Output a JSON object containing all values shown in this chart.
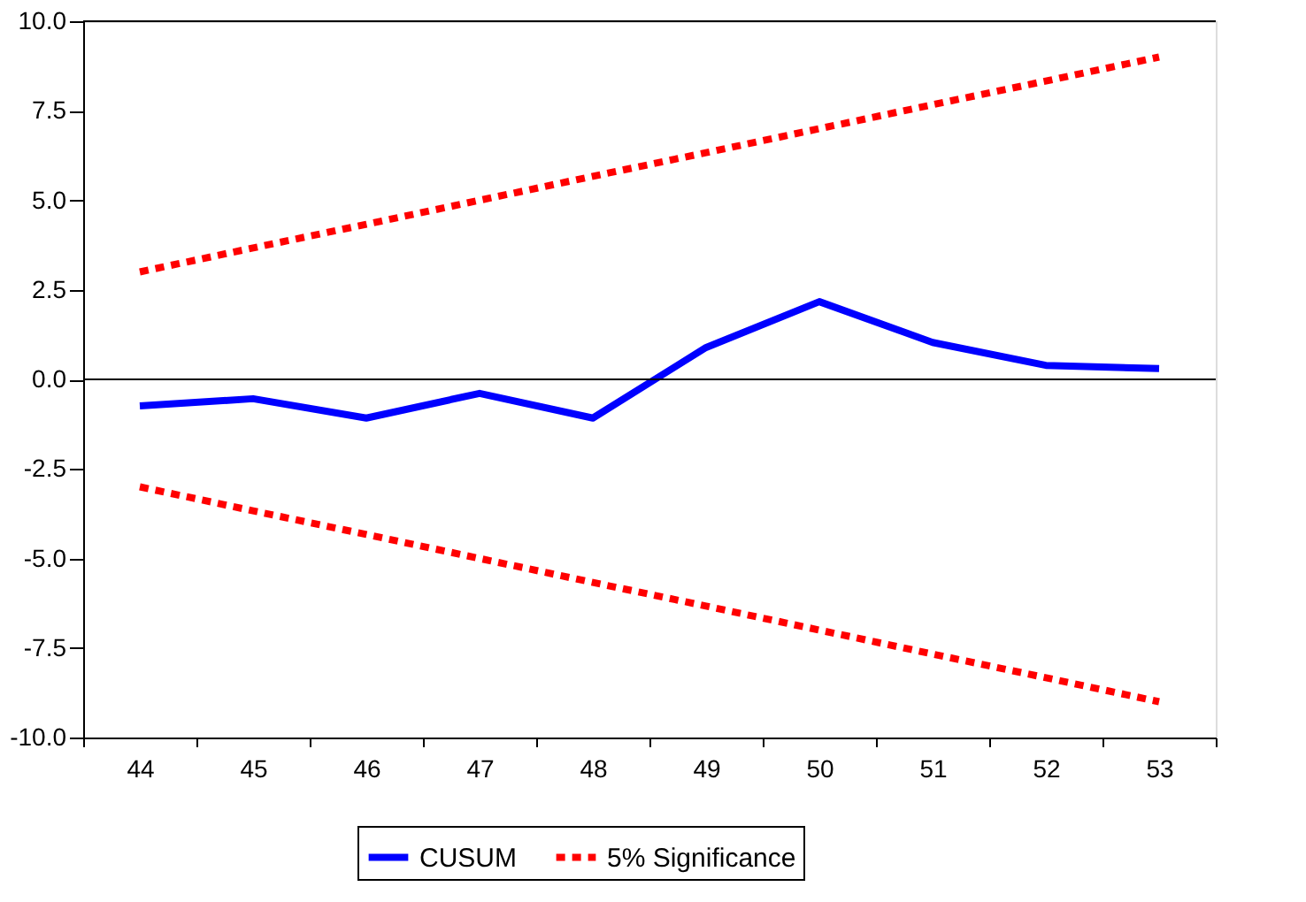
{
  "chart_data": {
    "type": "line",
    "categories": [
      "44",
      "45",
      "46",
      "47",
      "48",
      "49",
      "50",
      "51",
      "52",
      "53"
    ],
    "series": [
      {
        "name": "CUSUM",
        "color": "#0000ff",
        "line_style": "solid",
        "values": [
          -0.74,
          -0.54,
          -1.08,
          -0.39,
          -1.08,
          0.89,
          2.17,
          1.03,
          0.39,
          0.3
        ]
      },
      {
        "name": "5% Significance",
        "color": "#ff0000",
        "line_style": "dotted",
        "values": [
          3.0,
          3.67,
          4.33,
          5.0,
          5.67,
          6.33,
          7.0,
          7.67,
          8.33,
          9.0
        ]
      },
      {
        "color": "#ff0000",
        "line_style": "dotted",
        "values": [
          -3.0,
          -3.67,
          -4.33,
          -5.0,
          -5.67,
          -6.33,
          -7.0,
          -7.67,
          -8.33,
          -9.0
        ]
      }
    ],
    "ylim": [
      -10,
      10
    ],
    "yticks": [
      {
        "value": 10,
        "label": "10.0"
      },
      {
        "value": 7.5,
        "label": "7.5"
      },
      {
        "value": 5,
        "label": "5.0"
      },
      {
        "value": 2.5,
        "label": "2.5"
      },
      {
        "value": 0,
        "label": "0.0"
      },
      {
        "value": -2.5,
        "label": "-2.5"
      },
      {
        "value": -5,
        "label": "-5.0"
      },
      {
        "value": -7.5,
        "label": "-7.5"
      },
      {
        "value": -10,
        "label": "-10.0"
      }
    ],
    "ref_lines": [
      {
        "axis": "y",
        "value": 0,
        "color": "#000000",
        "line_style": "solid"
      }
    ],
    "grid": false,
    "legend": "bottom",
    "marker": "none"
  }
}
